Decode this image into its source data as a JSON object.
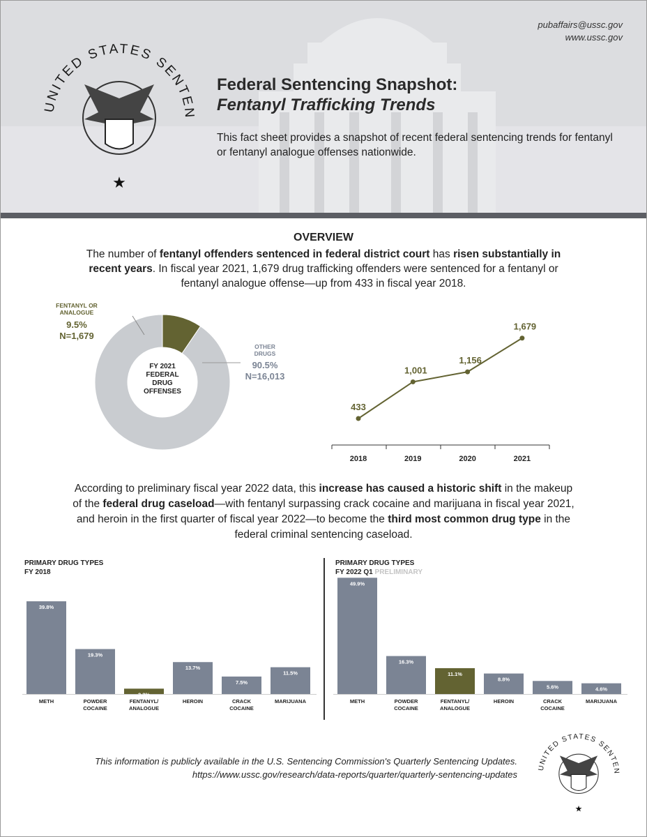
{
  "header": {
    "email": "pubaffairs@ussc.gov",
    "website": "www.ussc.gov",
    "title_line1": "Federal Sentencing Snapshot:",
    "title_line2": "Fentanyl Trafficking Trends",
    "intro": "This fact sheet provides a snapshot of recent federal sentencing trends for fentanyl or fentanyl analogue offenses nationwide.",
    "seal_text": "UNITED STATES SENTENCING COMMISSION"
  },
  "overview": {
    "heading": "OVERVIEW",
    "p1": "The number of ",
    "b1": "fentanyl offenders sentenced in federal district court",
    "p2": " has ",
    "b2": "risen substantially in recent years",
    "p3": ". In fiscal year 2021, 1,679 drug trafficking offenders were sentenced for a fentanyl or fentanyl analogue offense—up from 433 in fiscal year 2018."
  },
  "shift": {
    "p1": "According to preliminary fiscal year 2022 data, this ",
    "b1": "increase has caused a historic shift",
    "p2": " in the makeup of the ",
    "b2": "federal drug caseload",
    "p3": "—with fentanyl surpassing crack cocaine and marijuana in fiscal year 2021, and heroin in the first quarter of fiscal year 2022—to become the ",
    "b3": "third most common drug type",
    "p4": " in the federal criminal sentencing caseload."
  },
  "footer": {
    "line1": "This information is publicly available in the U.S. Sentencing Commission's Quarterly Sentencing Updates.",
    "line2": "https://www.ussc.gov/research/data-reports/quarter/quarterly-sentencing-updates"
  },
  "colors": {
    "olive": "#636332",
    "bar_gray": "#7b8494",
    "donut_gray": "#c9ccd0",
    "header_bg": "#dcdde0"
  },
  "chart_data": [
    {
      "type": "pie",
      "donut": true,
      "center_label": "FY 2021 FEDERAL DRUG OFFENSES",
      "slices": [
        {
          "label": "FENTANYL OR ANALOGUE",
          "percent_label": "9.5%",
          "n_label": "N=1,679",
          "value": 9.5,
          "color": "#636332"
        },
        {
          "label": "OTHER DRUGS",
          "percent_label": "90.5%",
          "n_label": "N=16,013",
          "value": 90.5,
          "color": "#c9ccd0"
        }
      ]
    },
    {
      "type": "line",
      "categories": [
        "2018",
        "2019",
        "2020",
        "2021"
      ],
      "values": [
        433,
        1001,
        1156,
        1679
      ],
      "data_labels": [
        "433",
        "1,001",
        "1,156",
        "1,679"
      ],
      "color": "#636332"
    },
    {
      "type": "bar",
      "title": "PRIMARY DRUG TYPES",
      "subtitle": "FY 2018",
      "subtitle_note": "",
      "categories": [
        "METH",
        "POWDER COCAINE",
        "FENTANYL/ ANALOGUE",
        "HEROIN",
        "CRACK COCAINE",
        "MARIJUANA"
      ],
      "values": [
        39.8,
        19.3,
        2.3,
        13.7,
        7.5,
        11.5
      ],
      "labels": [
        "39.8%",
        "19.3%",
        "2.3%",
        "13.7%",
        "7.5%",
        "11.5%"
      ],
      "highlight_index": 2
    },
    {
      "type": "bar",
      "title": "PRIMARY DRUG TYPES",
      "subtitle": "FY 2022 Q1",
      "subtitle_note": "PRELIMINARY",
      "categories": [
        "METH",
        "POWDER COCAINE",
        "FENTANYL/ ANALOGUE",
        "HEROIN",
        "CRACK COCAINE",
        "MARIJUANA"
      ],
      "values": [
        49.9,
        16.3,
        11.1,
        8.8,
        5.6,
        4.6
      ],
      "labels": [
        "49.9%",
        "16.3%",
        "11.1%",
        "8.8%",
        "5.6%",
        "4.6%"
      ],
      "highlight_index": 2
    }
  ]
}
